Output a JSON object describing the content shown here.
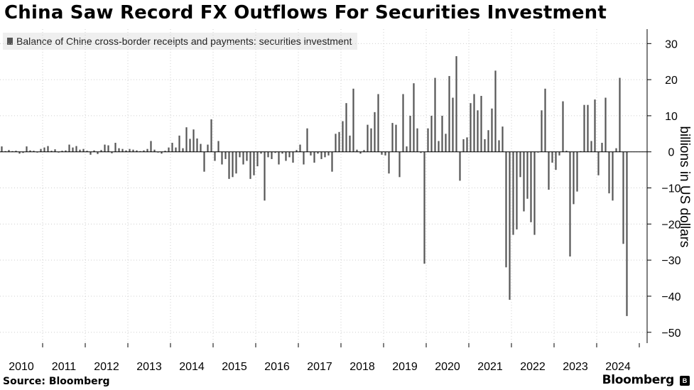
{
  "header": {
    "title": "China Saw Record FX Outflows For Securities Investment"
  },
  "footer": {
    "source": "Source: Bloomberg",
    "brand": "Bloomberg"
  },
  "chart_data": {
    "type": "bar",
    "legend": "Balance of Chine cross-border receipts and payments: securities investment",
    "ylabel": "billions in US dollars",
    "ylim": [
      -53,
      34
    ],
    "yticks": [
      30,
      20,
      10,
      0,
      -10,
      -20,
      -30,
      -40,
      -50
    ],
    "x_tick_labels": [
      "2010",
      "2011",
      "2012",
      "2013",
      "2014",
      "2015",
      "2016",
      "2017",
      "2018",
      "2019",
      "2020",
      "2021",
      "2022",
      "2023",
      "2024"
    ],
    "grid": true,
    "bar_color": "#555555",
    "values": [
      1.5,
      0.2,
      0.5,
      0.2,
      0.3,
      -0.5,
      -0.3,
      1.5,
      0.4,
      0.3,
      -0.2,
      0.8,
      1.2,
      1.6,
      0.3,
      0.7,
      -0.2,
      0.3,
      0.4,
      2.0,
      1.2,
      1.6,
      0.6,
      0.8,
      0.3,
      -0.8,
      0.4,
      -0.6,
      0.5,
      2.0,
      1.8,
      -0.4,
      2.5,
      1.0,
      0.8,
      0.4,
      0.8,
      0.6,
      0.4,
      0.2,
      0.4,
      0.8,
      3.0,
      0.6,
      -0.2,
      -0.5,
      0.3,
      1.2,
      2.5,
      1.2,
      4.5,
      1.0,
      6.8,
      3.6,
      6.2,
      3.7,
      2.2,
      -5.5,
      2.0,
      9.0,
      -2.5,
      3.0,
      -3.5,
      -2.0,
      -7.5,
      -7.0,
      -6.0,
      -1.5,
      -3.5,
      -2.5,
      -7.5,
      -6.5,
      -4.0,
      -0.5,
      -13.5,
      -1.5,
      -2.0,
      -0.3,
      -3.5,
      -0.5,
      -2.5,
      -1.5,
      -3.0,
      0.5,
      2.0,
      -3.5,
      6.5,
      -1.0,
      -3.0,
      -0.5,
      -2.0,
      -1.5,
      -1.0,
      -5.5,
      5.0,
      5.5,
      8.5,
      13.5,
      4.5,
      17.5,
      0.6,
      -0.5,
      0.5,
      7.5,
      6.5,
      11.0,
      16.0,
      -0.8,
      -1.0,
      -6.0,
      8.0,
      7.5,
      -7.0,
      16.0,
      1.5,
      10.0,
      19.0,
      6.5,
      -0.3,
      -31.0,
      6.5,
      10.0,
      20.5,
      3.0,
      10.0,
      5.0,
      21.0,
      15.0,
      26.5,
      -8.0,
      3.5,
      4.0,
      13.5,
      16.0,
      11.5,
      15.5,
      3.5,
      6.0,
      12.0,
      22.5,
      3.2,
      7.0,
      -32.0,
      -41.0,
      -23.0,
      -21.5,
      -7.0,
      -16.5,
      -13.0,
      -19.5,
      -23.0,
      -0.2,
      11.5,
      17.5,
      -10.5,
      -3.0,
      -5.0,
      -1.0,
      14.0,
      0.3,
      -29.0,
      -14.5,
      -11.0,
      0.2,
      13.0,
      13.0,
      3.0,
      14.5,
      -6.5,
      2.5,
      15.0,
      -11.5,
      -13.5,
      1.0,
      20.5,
      -25.5,
      -45.5
    ]
  }
}
